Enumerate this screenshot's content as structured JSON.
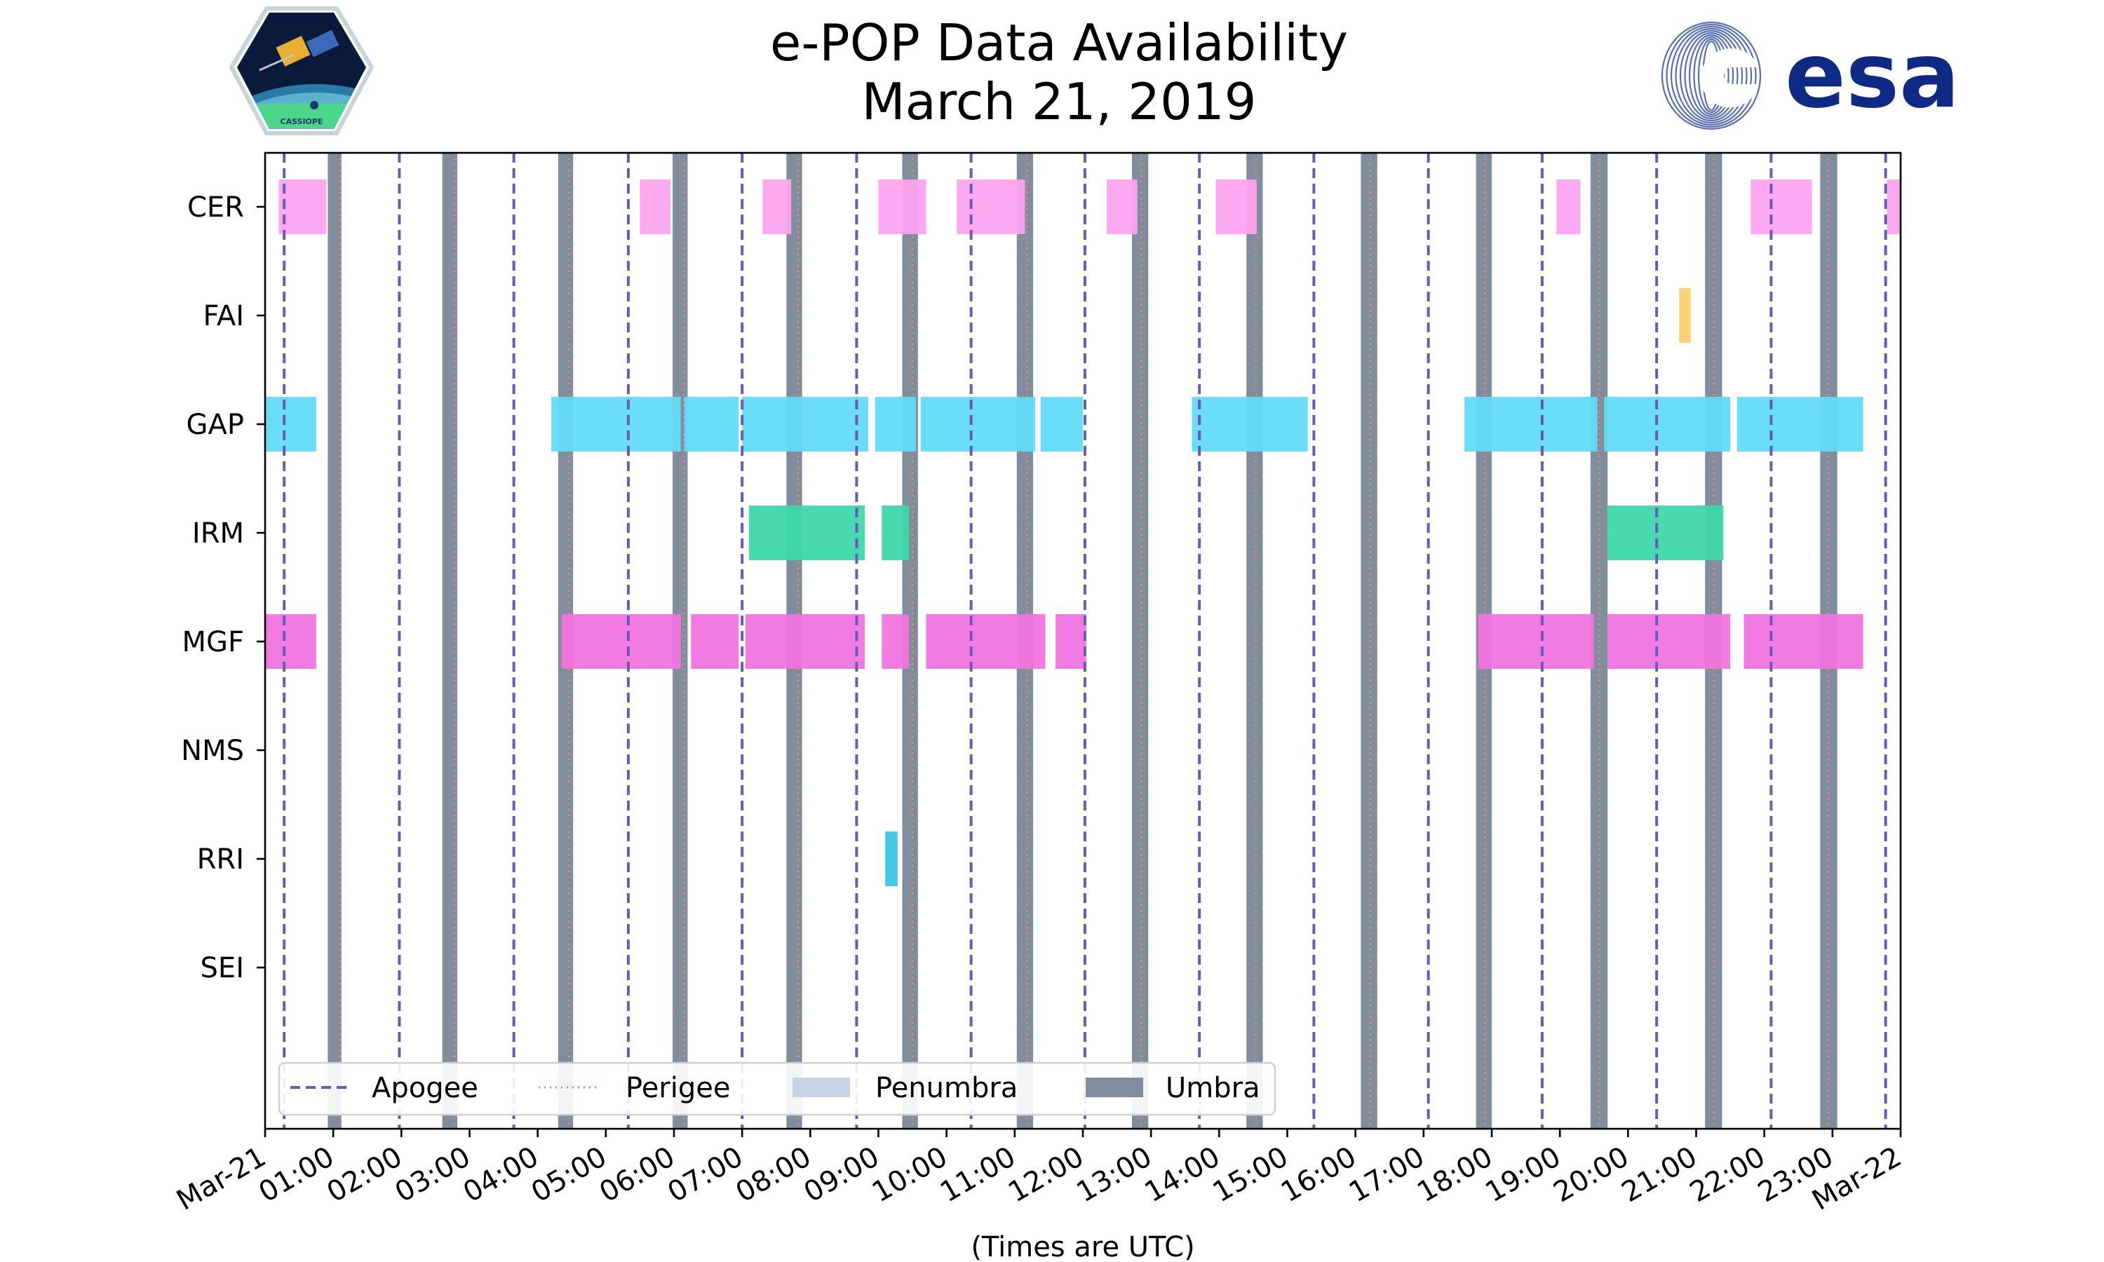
{
  "chart_data": {
    "type": "timeline",
    "title": "e-POP Data Availability",
    "subtitle": "March 21, 2019",
    "xlabel": "(Times are UTC)",
    "x_range_hours": [
      0,
      24
    ],
    "x_tick_labels": [
      "Mar-21",
      "01:00",
      "02:00",
      "03:00",
      "04:00",
      "05:00",
      "06:00",
      "07:00",
      "08:00",
      "09:00",
      "10:00",
      "11:00",
      "12:00",
      "13:00",
      "14:00",
      "15:00",
      "16:00",
      "17:00",
      "18:00",
      "19:00",
      "20:00",
      "21:00",
      "22:00",
      "23:00",
      "Mar-22"
    ],
    "instruments": [
      "CER",
      "FAI",
      "GAP",
      "IRM",
      "MGF",
      "NMS",
      "RRI",
      "SEI"
    ],
    "colors": {
      "CER": "#fca4f0",
      "FAI": "#fcd070",
      "GAP": "#62dcf8",
      "IRM": "#3ed8aa",
      "MGF": "#f074de",
      "NMS": "#8888cc",
      "RRI": "#38c4e6",
      "SEI": "#8888cc",
      "apogee": "#6a5ab8",
      "perigee": "#f08070",
      "penumbra": "#c6d4e6",
      "umbra": "#808d9d"
    },
    "data_intervals": {
      "CER": [
        [
          0.2,
          0.9
        ],
        [
          5.5,
          5.95
        ],
        [
          7.3,
          7.72
        ],
        [
          9.0,
          9.7
        ],
        [
          10.15,
          11.15
        ],
        [
          12.35,
          12.8
        ],
        [
          13.95,
          14.55
        ],
        [
          18.95,
          19.3
        ],
        [
          21.8,
          22.7
        ],
        [
          23.8,
          24.0
        ]
      ],
      "FAI": [
        [
          20.75,
          20.92
        ]
      ],
      "GAP": [
        [
          0.0,
          0.75
        ],
        [
          4.2,
          6.1
        ],
        [
          6.15,
          6.95
        ],
        [
          7.0,
          8.85
        ],
        [
          8.95,
          9.55
        ],
        [
          9.62,
          11.3
        ],
        [
          11.38,
          12.0
        ],
        [
          13.6,
          15.3
        ],
        [
          17.6,
          19.55
        ],
        [
          19.65,
          21.5
        ],
        [
          21.6,
          23.45
        ]
      ],
      "IRM": [
        [
          7.1,
          8.8
        ],
        [
          9.05,
          9.45
        ],
        [
          19.7,
          21.4
        ]
      ],
      "MGF": [
        [
          0.0,
          0.75
        ],
        [
          4.35,
          6.1
        ],
        [
          6.25,
          6.95
        ],
        [
          7.05,
          8.8
        ],
        [
          9.05,
          9.45
        ],
        [
          9.7,
          11.45
        ],
        [
          11.6,
          12.05
        ],
        [
          17.8,
          19.5
        ],
        [
          19.7,
          21.5
        ],
        [
          21.7,
          23.45
        ]
      ],
      "NMS": [],
      "RRI": [
        [
          9.1,
          9.28
        ]
      ],
      "SEI": []
    },
    "umbra_intervals": [
      [
        0.92,
        1.12
      ],
      [
        2.6,
        2.82
      ],
      [
        4.3,
        4.52
      ],
      [
        5.98,
        6.2
      ],
      [
        7.65,
        7.88
      ],
      [
        9.35,
        9.58
      ],
      [
        11.03,
        11.27
      ],
      [
        12.72,
        12.96
      ],
      [
        14.4,
        14.64
      ],
      [
        16.08,
        16.32
      ],
      [
        17.77,
        18.0
      ],
      [
        19.45,
        19.7
      ],
      [
        21.13,
        21.38
      ],
      [
        22.82,
        23.07
      ]
    ],
    "apogee_times": [
      0.28,
      1.97,
      3.65,
      5.33,
      7.0,
      8.68,
      10.36,
      12.03,
      13.71,
      15.39,
      17.07,
      18.74,
      20.42,
      22.1,
      23.78
    ],
    "perigee_times": [
      1.1,
      2.78,
      4.46,
      6.14,
      7.82,
      9.5,
      11.18,
      12.86,
      14.54,
      16.22,
      17.9,
      19.58,
      21.26,
      22.94
    ],
    "legend": [
      {
        "key": "apogee",
        "label": "Apogee"
      },
      {
        "key": "perigee",
        "label": "Perigee"
      },
      {
        "key": "penumbra",
        "label": "Penumbra"
      },
      {
        "key": "umbra",
        "label": "Umbra"
      }
    ]
  },
  "logos": {
    "left": {
      "name": "CASSIOPE",
      "text": "CASSIOPE"
    },
    "right": {
      "name": "esa",
      "text": "esa"
    }
  }
}
